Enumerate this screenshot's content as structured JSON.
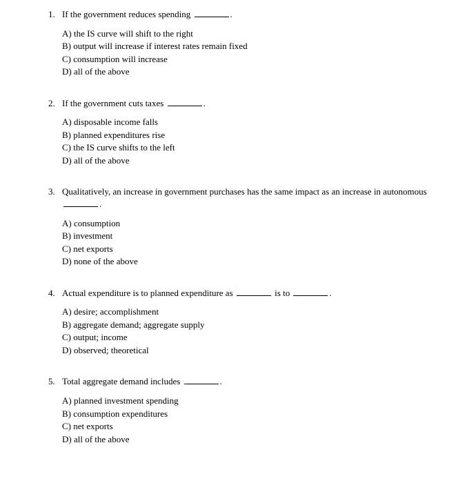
{
  "questions": [
    {
      "num": "1.",
      "stem_pre": "If the government reduces spending ",
      "stem_post": ".",
      "blanks": 1,
      "options": [
        "A) the IS curve will shift to the right",
        "B) output will increase if interest rates remain fixed",
        "C) consumption will increase",
        "D) all of the above"
      ]
    },
    {
      "num": "2.",
      "stem_pre": "If the government cuts taxes ",
      "stem_post": ".",
      "blanks": 1,
      "options": [
        "A) disposable income falls",
        "B) planned expenditures rise",
        "C) the IS curve shifts to the left",
        "D) all of the above"
      ]
    },
    {
      "num": "3.",
      "stem_pre": "Qualitatively, an increase in government purchases has the same impact as an increase in autonomous ",
      "stem_post": ".",
      "blanks": 1,
      "options": [
        "A) consumption",
        "B) investment",
        "C) net exports",
        "D) none of the above"
      ]
    },
    {
      "num": "4.",
      "stem_pre": "Actual expenditure is to planned expenditure as ",
      "stem_mid": " is to ",
      "stem_post": ".",
      "blanks": 2,
      "options": [
        "A) desire; accomplishment",
        "B) aggregate demand; aggregate supply",
        "C) output; income",
        "D) observed; theoretical"
      ]
    },
    {
      "num": "5.",
      "stem_pre": "Total aggregate demand includes ",
      "stem_post": ".",
      "blanks": 1,
      "options": [
        "A) planned investment spending",
        "B) consumption expenditures",
        "C) net exports",
        "D) all of the above"
      ]
    }
  ]
}
